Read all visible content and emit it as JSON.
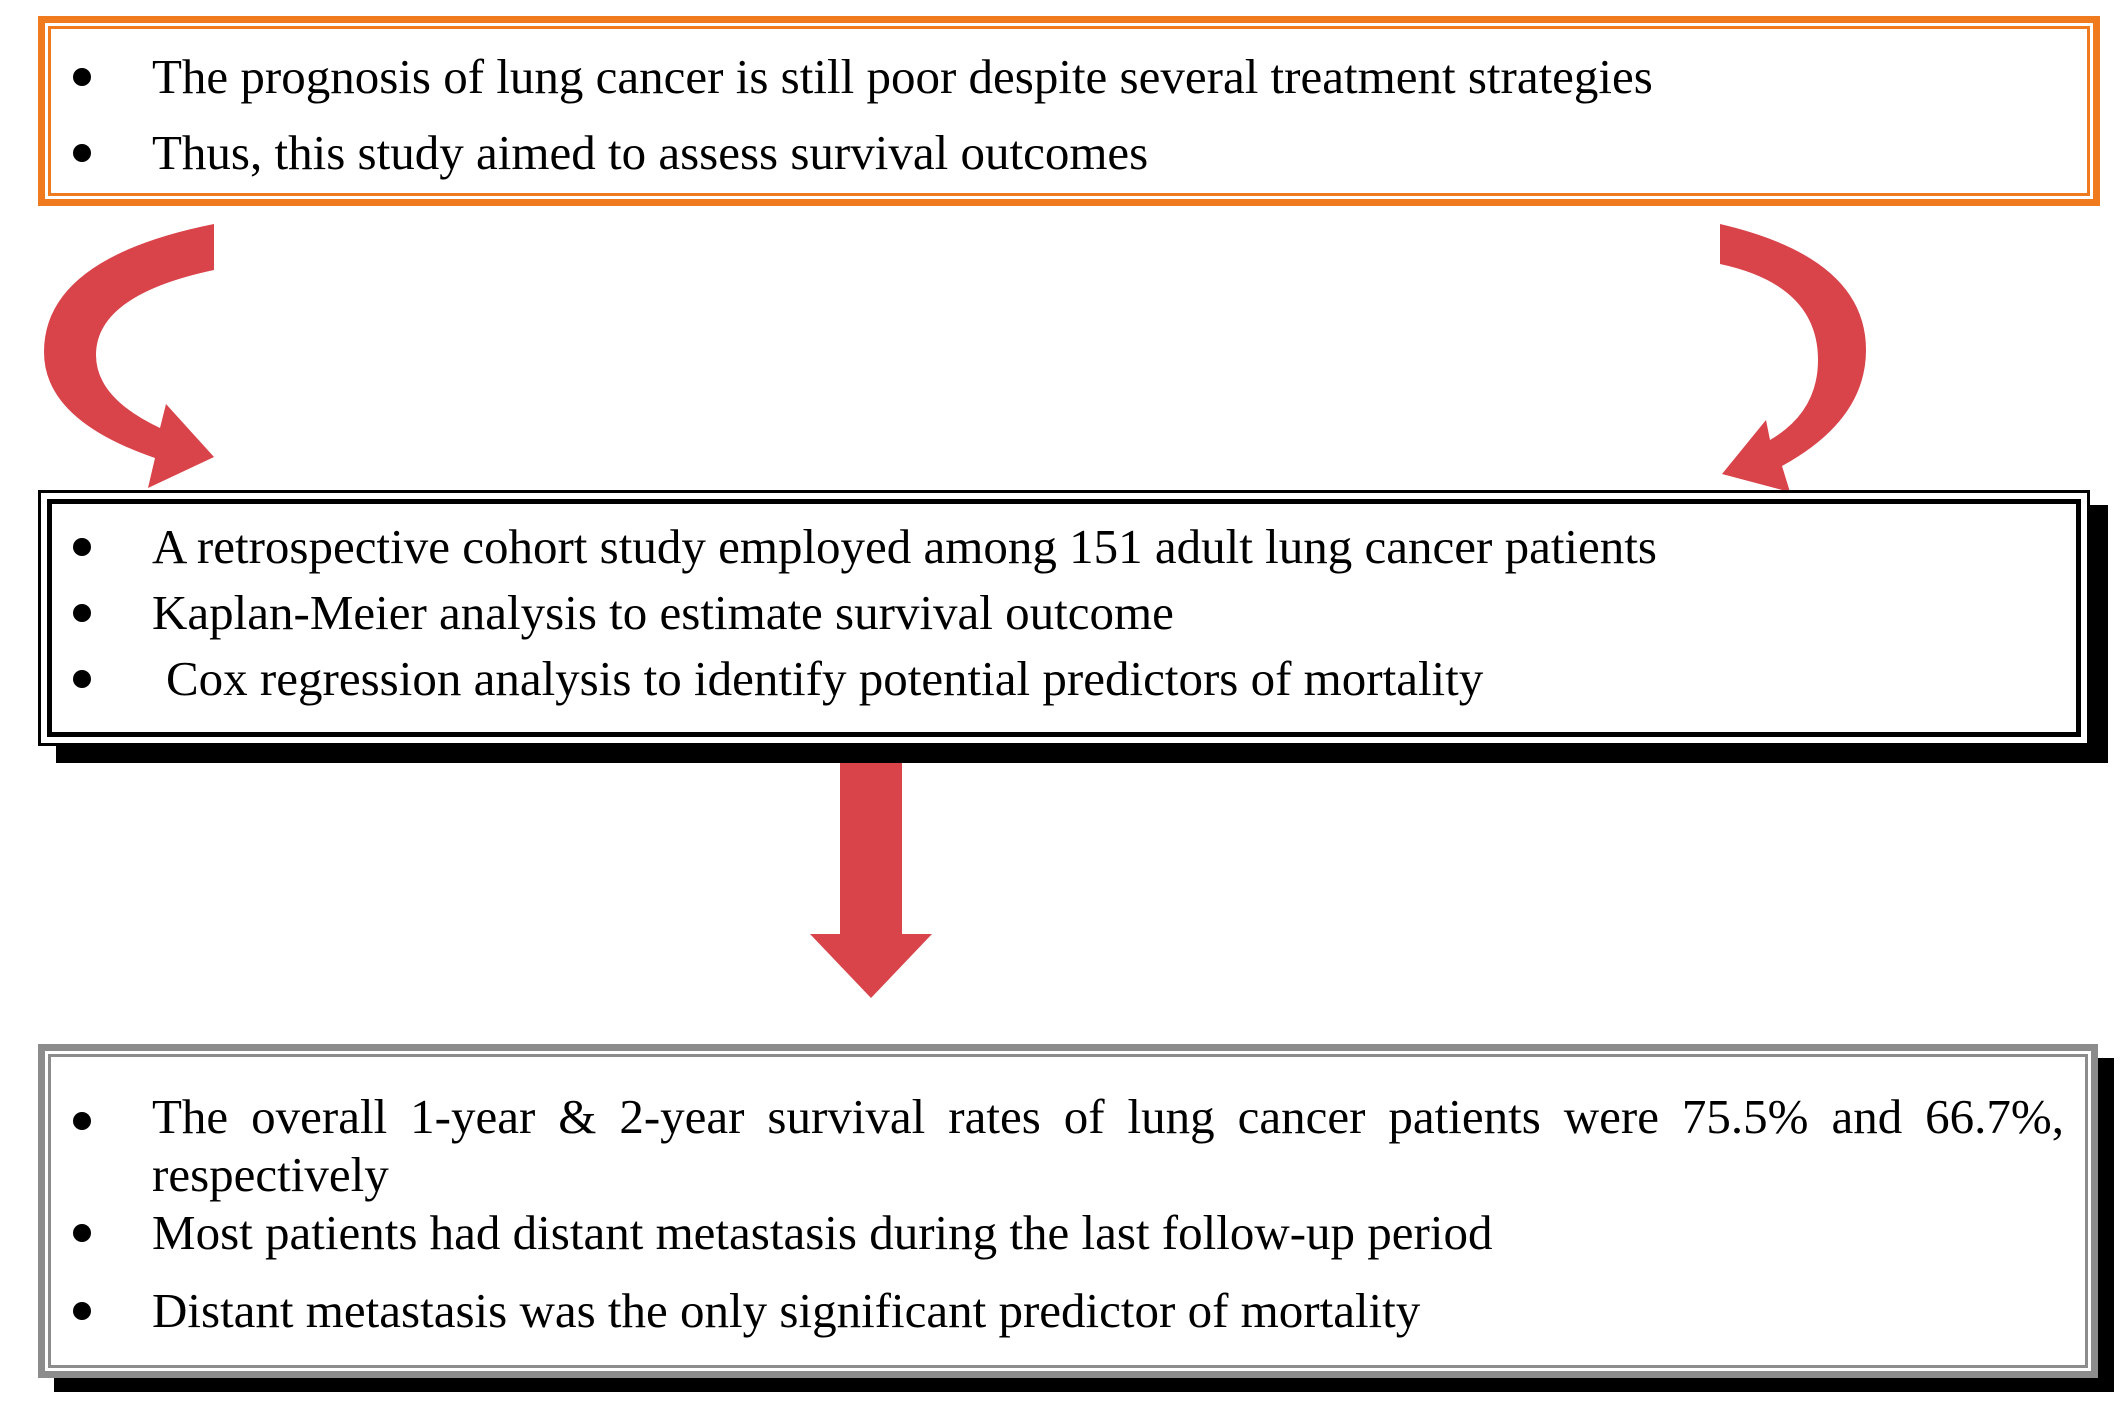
{
  "boxes": {
    "top": {
      "items": [
        "The prognosis of lung cancer is still poor despite several treatment strategies",
        "Thus, this study aimed to assess survival outcomes"
      ]
    },
    "middle": {
      "items": [
        "A retrospective cohort study employed among 151 adult lung cancer patients",
        "Kaplan-Meier analysis to estimate survival outcome",
        "Cox regression analysis to identify potential predictors of mortality"
      ]
    },
    "bottom": {
      "items": [
        "The overall 1-year & 2-year survival rates of lung cancer patients were 75.5% and 66.7%, respectively",
        "Most patients had distant metastasis during the last follow-up period",
        "Distant metastasis was the only significant predictor of mortality"
      ]
    }
  },
  "colors": {
    "top_border": "#f07a1e",
    "middle_border": "#000000",
    "bottom_border": "#8c8c8c",
    "arrow_fill": "#d9434a"
  },
  "icons": [
    "curved-arrow-left-icon",
    "curved-arrow-right-icon",
    "down-arrow-icon"
  ]
}
